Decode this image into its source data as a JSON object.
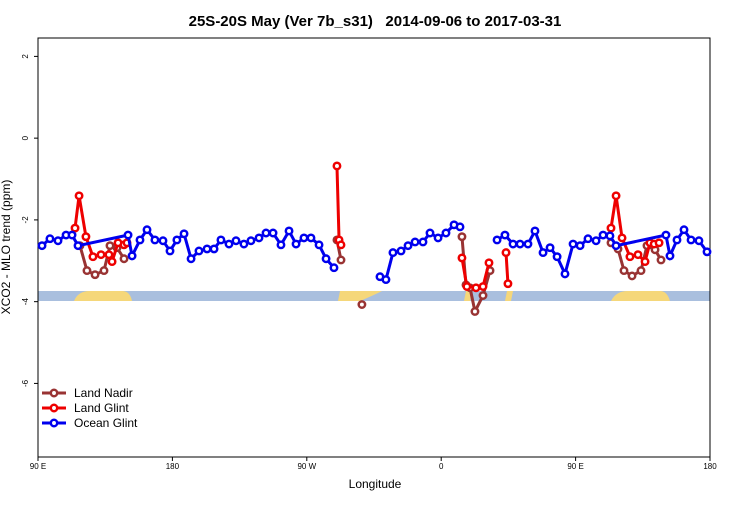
{
  "chart_data": {
    "type": "line",
    "title": "25S-20S May (Ver 7b_s31)   2014-09-06 to 2017-03-31",
    "x_label": "Longitude",
    "y_label": "XCO2 - MLO trend (ppm)",
    "xlim": [
      90,
      540
    ],
    "xticks": [
      {
        "value": 90,
        "label": "90 E"
      },
      {
        "value": 180,
        "label": "180"
      },
      {
        "value": 270,
        "label": "90 W"
      },
      {
        "value": 360,
        "label": "0"
      },
      {
        "value": 450,
        "label": "90 E"
      },
      {
        "value": 540,
        "label": "180"
      }
    ],
    "ylim": [
      -7.8,
      2.45
    ],
    "yticks": [
      2,
      0,
      -2,
      -4,
      -6
    ],
    "legend": "bottom-left",
    "series": [
      {
        "name": "Land Nadir",
        "color": "#993333",
        "x": [
          118.1,
          122.8,
          128.2,
          134.2,
          138.2,
          142.9,
          147.6,
          null,
          290.2,
          292.9,
          null,
          306.9,
          null,
          373.9,
          376.6,
          379.3,
          382.6,
          388,
          392.7,
          null,
          473.7,
          478.4,
          482.4,
          487.8,
          493.8,
          497.8,
          503.2,
          507.2
        ],
        "values": [
          -2.63,
          -3.24,
          -3.34,
          -3.24,
          -2.63,
          -2.68,
          -2.95,
          null,
          -2.49,
          -2.98,
          null,
          -4.07,
          null,
          -2.41,
          -3.59,
          -3.66,
          -4.24,
          -3.85,
          -3.24,
          null,
          -2.56,
          -2.71,
          -3.24,
          -3.37,
          -3.24,
          -2.63,
          -2.73,
          -2.98
        ]
      },
      {
        "name": "Land Glint",
        "color": "#ee0000",
        "x": [
          114.8,
          117.5,
          122.1,
          126.8,
          132.2,
          137.5,
          139.6,
          143.6,
          147.6,
          149.6,
          null,
          290.2,
          291.6,
          292.9,
          null,
          373.9,
          377.2,
          383.3,
          388,
          392,
          null,
          403.4,
          404.7,
          null,
          473.7,
          477.1,
          481.1,
          486.4,
          491.8,
          496.5,
          499.8,
          502.6,
          505.9
        ],
        "values": [
          -2.2,
          -1.41,
          -2.41,
          -2.9,
          -2.85,
          -2.85,
          -3.02,
          -2.56,
          -2.61,
          -2.56,
          null,
          -0.68,
          -2.49,
          -2.61,
          null,
          -2.93,
          -3.63,
          -3.66,
          -3.63,
          -3.05,
          null,
          -2.8,
          -3.56,
          null,
          -2.2,
          -1.41,
          -2.44,
          -2.9,
          -2.85,
          -3.02,
          -2.56,
          -2.59,
          -2.56
        ]
      },
      {
        "name": "Ocean Glint",
        "color": "#0000ee",
        "x": [
          92.7,
          98,
          103.4,
          108.8,
          112.8,
          116.8,
          150.3,
          153,
          158.3,
          163,
          168.3,
          173.7,
          178.4,
          183,
          187.8,
          192.5,
          197.8,
          203.2,
          207.9,
          212.5,
          217.9,
          222.6,
          227.9,
          232.6,
          238,
          242.7,
          247.4,
          252.7,
          258.1,
          262.8,
          268.1,
          272.8,
          278.2,
          282.9,
          288.2,
          null,
          319,
          323,
          327.7,
          333.1,
          337.8,
          342.5,
          347.8,
          352.5,
          357.9,
          363.2,
          368.6,
          372.6,
          null,
          397.4,
          402.7,
          408.1,
          412.8,
          418.1,
          422.8,
          428.2,
          432.9,
          437.6,
          442.9,
          448.3,
          453,
          458.3,
          463.7,
          468.4,
          473,
          477.1,
          510.5,
          513.2,
          517.9,
          522.6,
          527.3,
          532.6,
          538
        ],
        "values": [
          -2.63,
          -2.46,
          -2.51,
          -2.37,
          -2.37,
          -2.63,
          -2.37,
          -2.88,
          -2.49,
          -2.24,
          -2.49,
          -2.51,
          -2.76,
          -2.49,
          -2.34,
          -2.95,
          -2.76,
          -2.71,
          -2.71,
          -2.49,
          -2.59,
          -2.51,
          -2.59,
          -2.51,
          -2.44,
          -2.32,
          -2.32,
          -2.61,
          -2.27,
          -2.59,
          -2.44,
          -2.44,
          -2.61,
          -2.95,
          -3.17,
          null,
          -3.39,
          -3.46,
          -2.8,
          -2.76,
          -2.63,
          -2.54,
          -2.54,
          -2.32,
          -2.44,
          -2.32,
          -2.12,
          -2.17,
          null,
          -2.49,
          -2.37,
          -2.59,
          -2.59,
          -2.59,
          -2.27,
          -2.8,
          -2.68,
          -2.9,
          -3.32,
          -2.59,
          -2.63,
          -2.46,
          -2.51,
          -2.37,
          -2.39,
          -2.63,
          -2.37,
          -2.88,
          -2.49,
          -2.24,
          -2.49,
          -2.51,
          -2.78
        ]
      }
    ]
  }
}
